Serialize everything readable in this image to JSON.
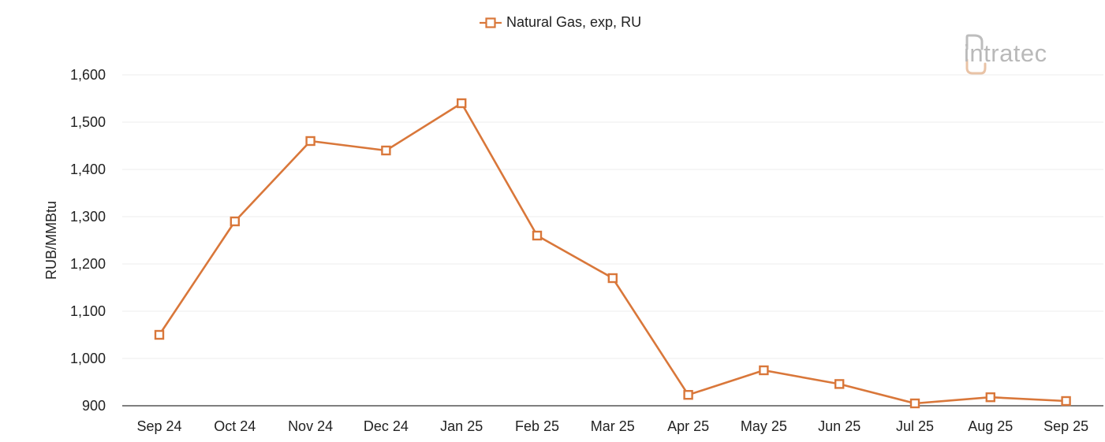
{
  "chart_data": {
    "type": "line",
    "categories": [
      "Sep 24",
      "Oct 24",
      "Nov 24",
      "Dec 24",
      "Jan 25",
      "Feb 25",
      "Mar 25",
      "Apr 25",
      "May 25",
      "Jun 25",
      "Jul 25",
      "Aug 25",
      "Sep 25"
    ],
    "series": [
      {
        "name": "Natural Gas, exp, RU",
        "values": [
          1050,
          1290,
          1460,
          1440,
          1540,
          1260,
          1170,
          923,
          975,
          946,
          905,
          918,
          910
        ],
        "color": "#d9773a",
        "marker": "square-open"
      }
    ],
    "title": "",
    "xlabel": "",
    "ylabel": "RUB/MMBtu",
    "ylim": [
      900,
      1600
    ],
    "yticks": [
      900,
      1000,
      1100,
      1200,
      1300,
      1400,
      1500,
      1600
    ],
    "ytick_labels": [
      "900",
      "1,000",
      "1,100",
      "1,200",
      "1,300",
      "1,400",
      "1,500",
      "1,600"
    ],
    "grid": true,
    "legend_position": "top-center"
  },
  "logo": {
    "text": "intratec",
    "icon": "intratec-logo-icon",
    "text_color": "#b9b9b9",
    "accent_color": "#e9c3a6"
  },
  "colors": {
    "grid": "#ececec",
    "axis": "#333333",
    "series": "#d9773a"
  }
}
